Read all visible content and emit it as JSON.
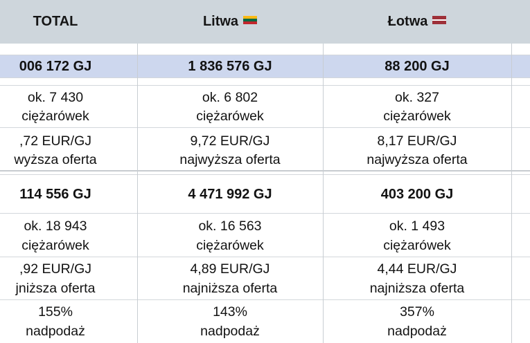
{
  "header": {
    "col0": "TOTAL",
    "col1": "Litwa",
    "col2": "Łotwa"
  },
  "colors": {
    "header_bg": "#ced6dc",
    "total_band": "#cdd7ee",
    "flag_lt": [
      "#fdb913",
      "#006a44",
      "#c1272d"
    ],
    "flag_lv": [
      "#9e3039",
      "#ffffff",
      "#9e3039"
    ]
  },
  "rows": {
    "max_total": [
      "006 172 GJ",
      "1 836 576 GJ",
      "88 200 GJ"
    ],
    "max_trucks_1": [
      "ok. 7 430",
      "ok. 6 802",
      "ok. 327"
    ],
    "max_trucks_2": [
      "ciężarówek",
      "ciężarówek",
      "ciężarówek"
    ],
    "max_price_1": [
      ",72 EUR/GJ",
      "9,72 EUR/GJ",
      "8,17 EUR/GJ"
    ],
    "max_price_2": [
      "wyższa oferta",
      "najwyższa oferta",
      "najwyższa oferta"
    ],
    "min_total": [
      "114 556 GJ",
      "4 471 992 GJ",
      "403 200 GJ"
    ],
    "min_trucks_1": [
      "ok. 18 943",
      "ok. 16 563",
      "ok. 1 493"
    ],
    "min_trucks_2": [
      "ciężarówek",
      "ciężarówek",
      "ciężarówek"
    ],
    "min_price_1": [
      ",92 EUR/GJ",
      "4,89 EUR/GJ",
      "4,44 EUR/GJ"
    ],
    "min_price_2": [
      "jniższa oferta",
      "najniższa oferta",
      "najniższa oferta"
    ],
    "surplus_1": [
      "155%",
      "143%",
      "357%"
    ],
    "surplus_2": [
      "nadpodaż",
      "nadpodaż",
      "nadpodaż"
    ]
  }
}
